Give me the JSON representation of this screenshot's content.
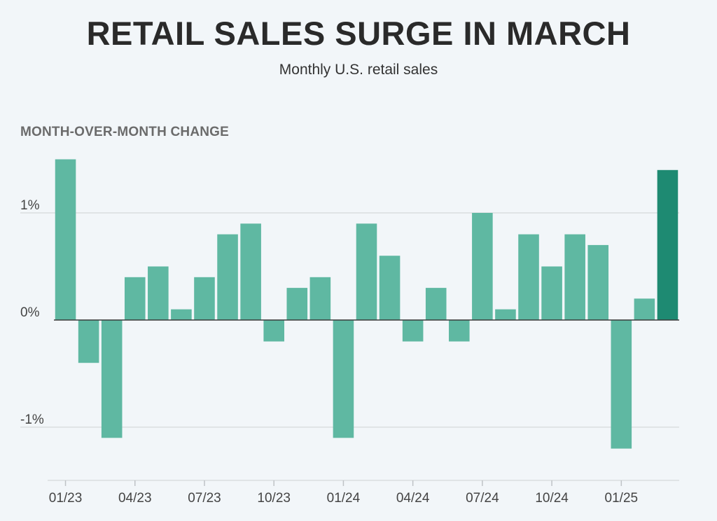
{
  "title": "RETAIL SALES SURGE IN MARCH",
  "subtitle": "Monthly U.S. retail sales",
  "colors": {
    "background": "#f2f6f9",
    "bar": "#5fb8a2",
    "bar_highlight": "#1e8a72",
    "grid": "#dadde0",
    "zero_line": "#3a3a3a"
  },
  "chart_data": {
    "type": "bar",
    "ylabel": "MONTH-OVER-MONTH CHANGE",
    "ylim": [
      -1.5,
      1.5
    ],
    "y_ticks": [
      {
        "value": 1,
        "label": "1%"
      },
      {
        "value": 0,
        "label": "0%"
      },
      {
        "value": -1,
        "label": "-1%"
      }
    ],
    "categories": [
      "01/23",
      "02/23",
      "03/23",
      "04/23",
      "05/23",
      "06/23",
      "07/23",
      "08/23",
      "09/23",
      "10/23",
      "11/23",
      "12/23",
      "01/24",
      "02/24",
      "03/24",
      "04/24",
      "05/24",
      "06/24",
      "07/24",
      "08/24",
      "09/24",
      "10/24",
      "11/24",
      "12/24",
      "01/25",
      "02/25",
      "03/25"
    ],
    "values": [
      1.5,
      -0.4,
      -1.1,
      0.4,
      0.5,
      0.1,
      0.4,
      0.8,
      0.9,
      -0.2,
      0.3,
      0.4,
      -1.1,
      0.9,
      0.6,
      -0.2,
      0.3,
      -0.2,
      1.0,
      0.1,
      0.8,
      0.5,
      0.8,
      0.7,
      -1.2,
      0.2,
      1.4
    ],
    "highlight_index": 26,
    "x_tick_labels": [
      {
        "index": 0,
        "label": "01/23"
      },
      {
        "index": 3,
        "label": "04/23"
      },
      {
        "index": 6,
        "label": "07/23"
      },
      {
        "index": 9,
        "label": "10/23"
      },
      {
        "index": 12,
        "label": "01/24"
      },
      {
        "index": 15,
        "label": "04/24"
      },
      {
        "index": 18,
        "label": "07/24"
      },
      {
        "index": 21,
        "label": "10/24"
      },
      {
        "index": 24,
        "label": "01/25"
      }
    ]
  }
}
